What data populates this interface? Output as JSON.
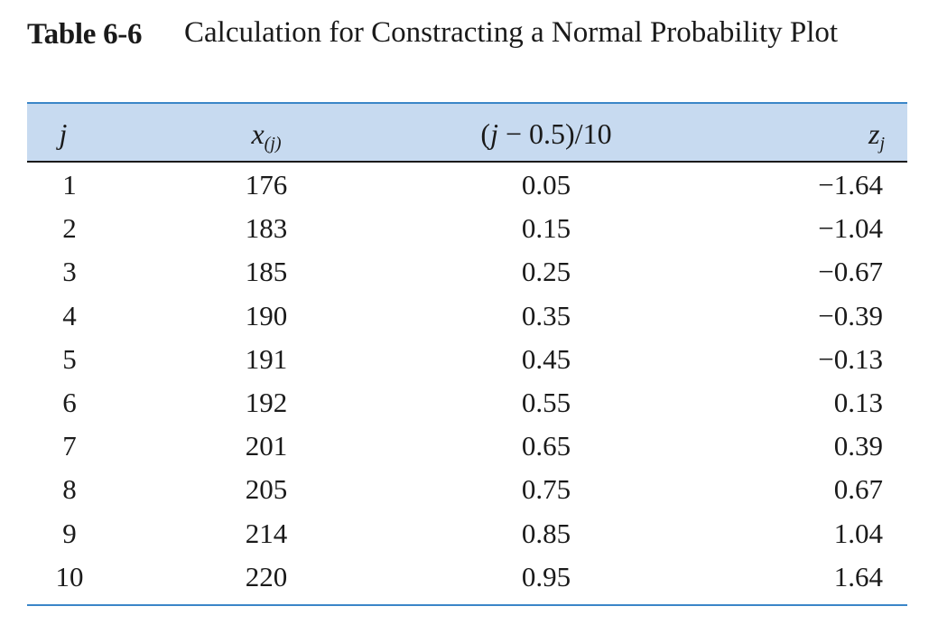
{
  "caption": {
    "label": "Table 6-6",
    "title": "Calculation for Constracting a Normal Probability Plot"
  },
  "headers": {
    "j": "j",
    "x_base": "x",
    "x_sub": "(j)",
    "prob_pre": "(",
    "prob_j": "j",
    "prob_post": " − 0.5)/10",
    "z_base": "z",
    "z_sub": "j"
  },
  "rows": [
    {
      "j": "1",
      "x": "176",
      "p": "0.05",
      "z": "−1.64"
    },
    {
      "j": "2",
      "x": "183",
      "p": "0.15",
      "z": "−1.04"
    },
    {
      "j": "3",
      "x": "185",
      "p": "0.25",
      "z": "−0.67"
    },
    {
      "j": "4",
      "x": "190",
      "p": "0.35",
      "z": "−0.39"
    },
    {
      "j": "5",
      "x": "191",
      "p": "0.45",
      "z": "−0.13"
    },
    {
      "j": "6",
      "x": "192",
      "p": "0.55",
      "z": "0.13"
    },
    {
      "j": "7",
      "x": "201",
      "p": "0.65",
      "z": "0.39"
    },
    {
      "j": "8",
      "x": "205",
      "p": "0.75",
      "z": "0.67"
    },
    {
      "j": "9",
      "x": "214",
      "p": "0.85",
      "z": "1.04"
    },
    {
      "j": "10",
      "x": "220",
      "p": "0.95",
      "z": "1.64"
    }
  ],
  "colors": {
    "header_band": "#c7daf0",
    "rule_accent": "#3a86c8"
  }
}
